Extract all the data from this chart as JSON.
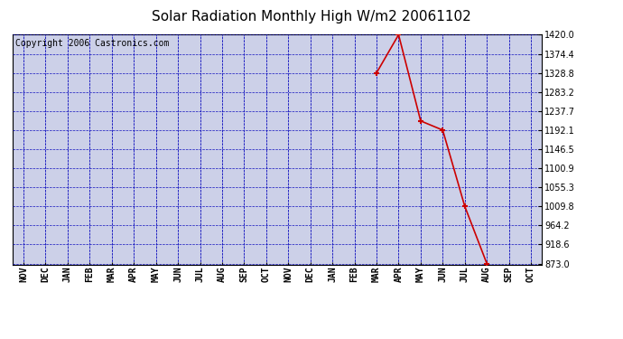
{
  "title": "Solar Radiation Monthly High W/m2 20061102",
  "copyright": "Copyright 2006 Castronics.com",
  "x_labels": [
    "NOV",
    "DEC",
    "JAN",
    "FEB",
    "MAR",
    "APR",
    "MAY",
    "JUN",
    "JUL",
    "AUG",
    "SEP",
    "OCT",
    "NOV",
    "DEC",
    "JAN",
    "FEB",
    "MAR",
    "APR",
    "MAY",
    "JUN",
    "JUL",
    "AUG",
    "SEP",
    "OCT"
  ],
  "data_x_indices": [
    16,
    17,
    18,
    19,
    20,
    21
  ],
  "data_values": [
    1328.8,
    1420.0,
    1214.0,
    1192.1,
    1009.8,
    873.0
  ],
  "y_min": 873.0,
  "y_max": 1420.0,
  "y_ticks": [
    873.0,
    918.6,
    964.2,
    1009.8,
    1055.3,
    1100.9,
    1146.5,
    1192.1,
    1237.7,
    1283.2,
    1328.8,
    1374.4,
    1420.0
  ],
  "line_color": "#cc0000",
  "marker_color": "#cc0000",
  "bg_color": "#ffffff",
  "plot_bg_color": "#ccd0e8",
  "grid_color": "#0000bb",
  "border_color": "#000000",
  "title_fontsize": 11,
  "tick_fontsize": 7,
  "copyright_fontsize": 7
}
